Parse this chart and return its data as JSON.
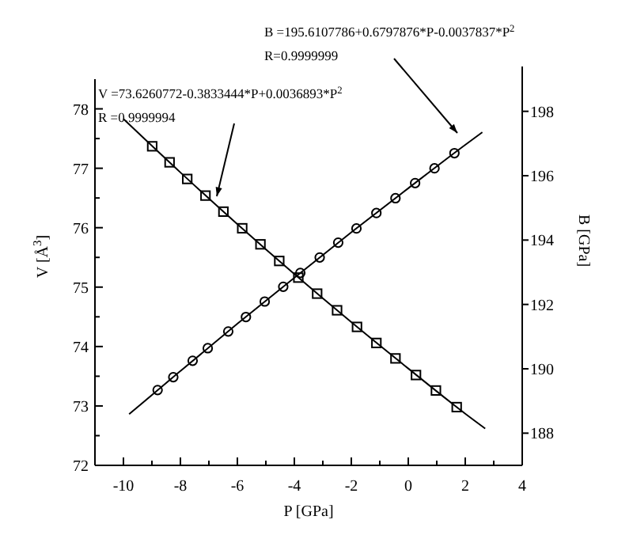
{
  "chart_data": {
    "type": "scatter",
    "xlabel": "P [GPa]",
    "ylabel": "V [Å$^{3}$]",
    "y2label": "B [GPa]",
    "xlim": [
      -11,
      4
    ],
    "xticks": [
      -10,
      {
        "value": -9,
        "label": null
      },
      -8,
      {
        "value": -7,
        "label": null
      },
      -6,
      {
        "value": -5,
        "label": null
      },
      -4,
      {
        "value": -3,
        "label": null
      },
      -2,
      {
        "value": -1,
        "label": null
      },
      0,
      {
        "value": 1,
        "label": null
      },
      2,
      {
        "value": 3,
        "label": null
      },
      4
    ],
    "ylim": [
      72,
      78.5
    ],
    "yticks": [
      72,
      {
        "value": 72.5,
        "label": null
      },
      73,
      {
        "value": 73.5,
        "label": null
      },
      74,
      {
        "value": 74.5,
        "label": null
      },
      75,
      {
        "value": 75.5,
        "label": null
      },
      76,
      {
        "value": 76.5,
        "label": null
      },
      77,
      {
        "value": 77.5,
        "label": null
      },
      78
    ],
    "y2lim": [
      187,
      199
    ],
    "y2ticks": [
      188,
      190,
      192,
      194,
      196,
      198
    ],
    "grid": false,
    "series": [
      {
        "type": "scatter",
        "marker": "square",
        "color": "#000000",
        "x": [
          -8.99,
          -8.38,
          -7.76,
          -7.12,
          -6.49,
          -5.83,
          -5.19,
          -4.53,
          -3.86,
          -3.2,
          -2.5,
          -1.8,
          -1.12,
          -0.45,
          0.27,
          0.97,
          1.7
        ],
        "values": [
          77.37,
          77.1,
          76.82,
          76.54,
          76.27,
          75.99,
          75.72,
          75.44,
          75.16,
          74.89,
          74.61,
          74.33,
          74.06,
          73.8,
          73.52,
          73.26,
          72.98
        ]
      },
      {
        "type": "scatter",
        "marker": "circle",
        "axis": "y2",
        "color": "#000000",
        "x": [
          -8.8,
          -8.25,
          -7.57,
          -7.04,
          -6.32,
          -5.7,
          -5.04,
          -4.39,
          -3.79,
          -3.11,
          -2.46,
          -1.82,
          -1.12,
          -0.45,
          0.24,
          0.92,
          1.62
        ],
        "values": [
          189.34,
          189.74,
          190.25,
          190.64,
          191.16,
          191.61,
          192.09,
          192.55,
          192.98,
          193.46,
          193.92,
          194.36,
          194.84,
          195.3,
          195.77,
          196.23,
          196.7
        ]
      },
      {
        "type": "line",
        "marker": "none",
        "color": "#000000",
        "x": [
          -10,
          -8,
          -6,
          -4,
          -2,
          0,
          2,
          2.7
        ],
        "values": [
          77.83,
          76.93,
          76.06,
          75.22,
          74.41,
          73.63,
          72.87,
          72.62
        ]
      },
      {
        "type": "line",
        "marker": "none",
        "axis": "y2",
        "color": "#000000",
        "x": [
          -9.8,
          -8,
          -6,
          -4,
          -2,
          0,
          2,
          2.6
        ],
        "values": [
          188.59,
          189.93,
          191.4,
          192.83,
          194.24,
          195.61,
          196.96,
          197.35
        ]
      }
    ],
    "annotations": [
      "V =73.6260772-0.3833444*P+0.0036893*P$^{2}$",
      "R =0.9999994",
      "B =195.6107786+0.6797876*P-0.0037837*P$^{2}$",
      "R=0.9999999"
    ]
  }
}
